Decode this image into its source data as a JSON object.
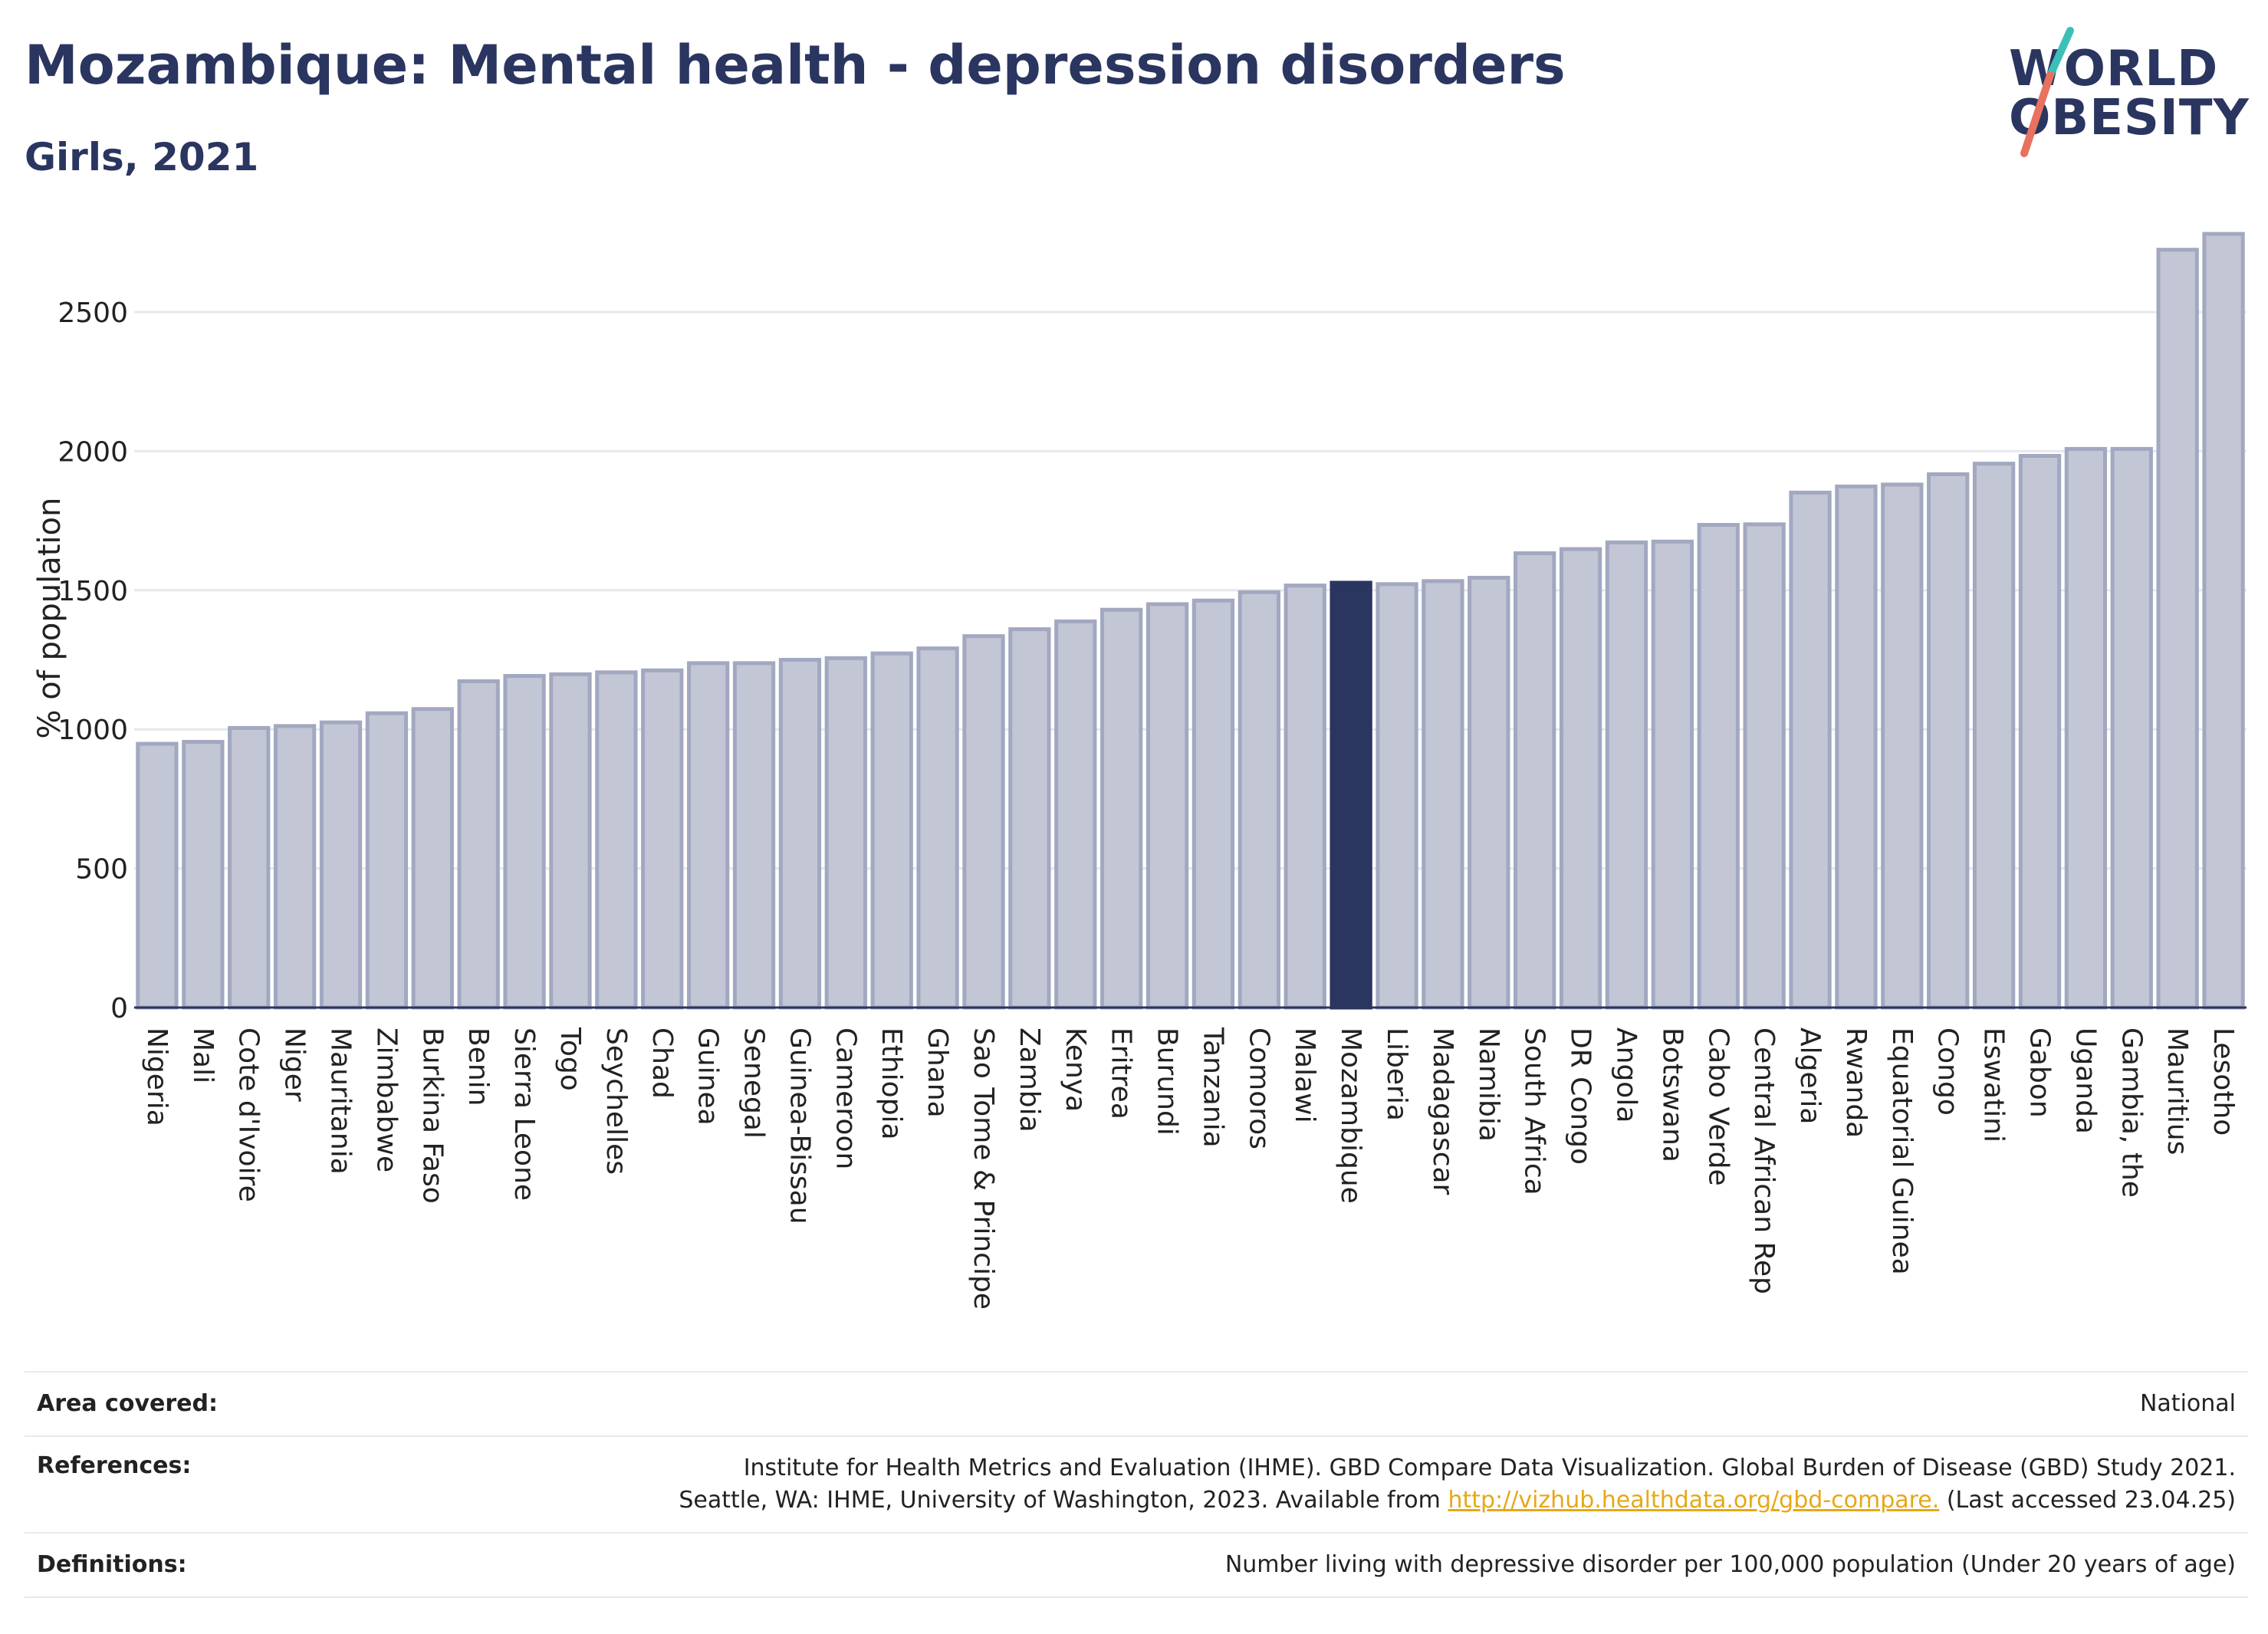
{
  "title": "Mozambique: Mental health - depression disorders",
  "subtitle": "Girls, 2021",
  "logo": {
    "line1": "WORLD",
    "line2": "OBESITY"
  },
  "colors": {
    "bar": "#c2c6d5",
    "bar_stroke": "#a2a8c0",
    "highlight": "#2a3560",
    "text": "#2a3560",
    "link": "#e6a817",
    "logo_slash_top": "#3cbfb8",
    "logo_slash_bottom": "#e8725e"
  },
  "chart_data": {
    "type": "bar",
    "ylabel": "% of population",
    "ylim": [
      0,
      2850
    ],
    "yticks": [
      0,
      500,
      1000,
      1500,
      2000,
      2500
    ],
    "grid": true,
    "highlight": "Mozambique",
    "categories": [
      "Nigeria",
      "Mali",
      "Cote d'Ivoire",
      "Niger",
      "Mauritania",
      "Zimbabwe",
      "Burkina Faso",
      "Benin",
      "Sierra Leone",
      "Togo",
      "Seychelles",
      "Chad",
      "Guinea",
      "Senegal",
      "Guinea-Bissau",
      "Cameroon",
      "Ethiopia",
      "Ghana",
      "Sao Tome & Principe",
      "Zambia",
      "Kenya",
      "Eritrea",
      "Burundi",
      "Tanzania",
      "Comoros",
      "Malawi",
      "Mozambique",
      "Liberia",
      "Madagascar",
      "Namibia",
      "South Africa",
      "DR Congo",
      "Angola",
      "Botswana",
      "Cabo Verde",
      "Central African Rep",
      "Algeria",
      "Rwanda",
      "Equatorial Guinea",
      "Congo",
      "Eswatini",
      "Gabon",
      "Uganda",
      "Gambia, the",
      "Mauritius",
      "Lesotho"
    ],
    "values": [
      948,
      955,
      1005,
      1012,
      1025,
      1058,
      1073,
      1173,
      1192,
      1198,
      1205,
      1212,
      1238,
      1238,
      1250,
      1256,
      1273,
      1291,
      1335,
      1360,
      1388,
      1430,
      1450,
      1463,
      1493,
      1517,
      1527,
      1522,
      1533,
      1545,
      1633,
      1648,
      1672,
      1675,
      1735,
      1737,
      1851,
      1873,
      1880,
      1917,
      1955,
      1983,
      2008,
      2008,
      2724,
      2781
    ]
  },
  "info": {
    "area_label": "Area covered:",
    "area_value": "National",
    "references_label": "References:",
    "references_line1": "Institute for Health Metrics and Evaluation (IHME). GBD Compare Data Visualization. Global Burden of Disease (GBD) Study 2021.",
    "references_line2_pre": "Seattle, WA: IHME, University of Washington, 2023. Available from",
    "references_link": "http://vizhub.healthdata.org/gbd-compare.",
    "references_line2_post": "(Last accessed 23.04.25)",
    "definitions_label": "Definitions:",
    "definitions_value": "Number living with depressive disorder per 100,000 population (Under 20 years of age)"
  }
}
